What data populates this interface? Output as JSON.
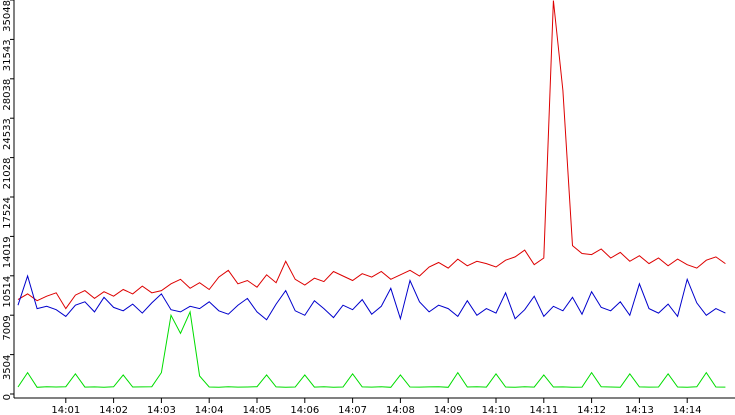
{
  "chart_data": {
    "type": "line",
    "x": [
      0,
      0.2,
      0.4,
      0.6,
      0.8,
      1,
      1.2,
      1.4,
      1.6,
      1.8,
      2,
      2.2,
      2.4,
      2.6,
      2.8,
      3,
      3.2,
      3.4,
      3.6,
      3.8,
      4,
      4.2,
      4.4,
      4.6,
      4.8,
      5,
      5.2,
      5.4,
      5.6,
      5.8,
      6,
      6.2,
      6.4,
      6.6,
      6.8,
      7,
      7.2,
      7.4,
      7.6,
      7.8,
      8,
      8.2,
      8.4,
      8.6,
      8.8,
      9,
      9.2,
      9.4,
      9.6,
      9.8,
      10,
      10.2,
      10.4,
      10.6,
      10.8,
      11,
      11.2,
      11.4,
      11.6,
      11.8,
      12,
      12.2,
      12.4,
      12.6,
      12.8,
      13,
      13.2,
      13.4,
      13.6,
      13.8,
      14,
      14.2,
      14.4,
      14.6,
      14.8
    ],
    "series": [
      {
        "color": "#dd0000",
        "values": [
          8400,
          8900,
          8300,
          8700,
          9000,
          7600,
          8800,
          9200,
          8500,
          9100,
          8700,
          9300,
          8900,
          9600,
          9000,
          9200,
          9800,
          10200,
          9400,
          9900,
          9300,
          10400,
          11000,
          9800,
          10100,
          9500,
          10600,
          9900,
          11800,
          10200,
          9700,
          10300,
          10000,
          10900,
          10500,
          10100,
          10700,
          10400,
          10900,
          10200,
          10600,
          11000,
          10500,
          11300,
          11700,
          11200,
          12000,
          11400,
          11800,
          11600,
          11300,
          11900,
          12200,
          12800,
          11500,
          12100,
          35000,
          27000,
          13200,
          12500,
          12400,
          12900,
          12100,
          12600,
          11800,
          12300,
          11600,
          12100,
          11400,
          12000,
          11500,
          11200,
          11900,
          12200,
          11600
        ]
      },
      {
        "color": "#0000cc",
        "values": [
          7900,
          10500,
          7600,
          7800,
          7500,
          6900,
          7900,
          8200,
          7300,
          8600,
          7700,
          7400,
          8000,
          7200,
          8100,
          8900,
          7500,
          7300,
          7800,
          7600,
          8200,
          7400,
          7100,
          7900,
          8500,
          7300,
          6600,
          8000,
          9200,
          7400,
          7000,
          8300,
          7600,
          6800,
          7900,
          7500,
          8400,
          7100,
          7800,
          9400,
          6700,
          10100,
          8200,
          7300,
          7900,
          7600,
          6900,
          8300,
          7000,
          7600,
          7200,
          9000,
          6700,
          7500,
          8700,
          6900,
          7800,
          7400,
          8600,
          7100,
          9100,
          7700,
          7400,
          8200,
          7000,
          9800,
          7600,
          7200,
          8000,
          6900,
          10200,
          8100,
          7000,
          7600,
          7200
        ]
      },
      {
        "color": "#00dd00",
        "values": [
          620,
          1900,
          600,
          640,
          620,
          650,
          1800,
          610,
          630,
          600,
          640,
          1700,
          620,
          630,
          650,
          1900,
          7000,
          5400,
          7300,
          1600,
          620,
          600,
          640,
          610,
          620,
          650,
          1700,
          630,
          600,
          620,
          1700,
          610,
          640,
          600,
          620,
          1800,
          630,
          610,
          640,
          600,
          1700,
          620,
          610,
          630,
          640,
          600,
          1900,
          620,
          640,
          610,
          1800,
          620,
          600,
          640,
          610,
          1700,
          620,
          630,
          600,
          610,
          1900,
          640,
          620,
          600,
          1800,
          630,
          610,
          620,
          1800,
          620,
          600,
          640,
          1900,
          620,
          610
        ]
      }
    ],
    "xlim": [
      0,
      15
    ],
    "xticks": [
      {
        "value": 1,
        "label": "14:01"
      },
      {
        "value": 2,
        "label": "14:02"
      },
      {
        "value": 3,
        "label": "14:03"
      },
      {
        "value": 4,
        "label": "14:04"
      },
      {
        "value": 5,
        "label": "14:05"
      },
      {
        "value": 6,
        "label": "14:06"
      },
      {
        "value": 7,
        "label": "14:07"
      },
      {
        "value": 8,
        "label": "14:08"
      },
      {
        "value": 9,
        "label": "14:09"
      },
      {
        "value": 10,
        "label": "14:10"
      },
      {
        "value": 11,
        "label": "14:11"
      },
      {
        "value": 12,
        "label": "14:12"
      },
      {
        "value": 13,
        "label": "14:13"
      },
      {
        "value": 14,
        "label": "14:14"
      }
    ],
    "ylim": [
      0,
      35048
    ],
    "yticks": [
      0,
      3504,
      7009,
      10514,
      14019,
      17524,
      21028,
      24533,
      28038,
      31543,
      35048
    ]
  }
}
